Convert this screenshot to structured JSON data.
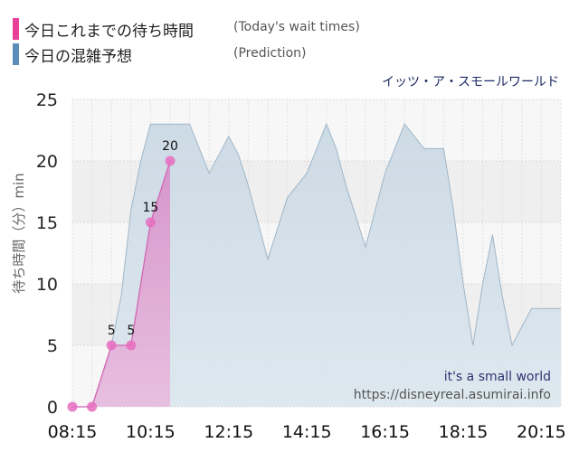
{
  "legend": {
    "today_label": "今日これまでの待ち時間",
    "today_en": "(Today's wait times)",
    "today_color": "#e8409a",
    "prediction_label": "今日の混雑予想",
    "prediction_en": "(Prediction)",
    "prediction_color": "#5a8db8"
  },
  "attraction_name_jp": "イッツ・ア・スモールワールド",
  "watermark": {
    "name": "it's a small world",
    "url": "https://disneyreal.asumirai.info"
  },
  "chart_data": {
    "type": "area",
    "ylabel": "待ち時間（分）min",
    "ylim": [
      0,
      25
    ],
    "yticks": [
      0,
      5,
      10,
      15,
      20,
      25
    ],
    "xlim": [
      "08:15",
      "20:45"
    ],
    "xticks": [
      "08:15",
      "10:15",
      "12:15",
      "14:15",
      "16:15",
      "18:15",
      "20:15"
    ],
    "grid": true,
    "series": [
      {
        "name": "今日の混雑予想",
        "color": "#5a8db8",
        "points": [
          [
            "08:15",
            0
          ],
          [
            "08:30",
            0
          ],
          [
            "08:45",
            0
          ],
          [
            "09:00",
            2
          ],
          [
            "09:15",
            5
          ],
          [
            "09:30",
            9
          ],
          [
            "09:45",
            16
          ],
          [
            "10:00",
            20
          ],
          [
            "10:15",
            23
          ],
          [
            "10:30",
            23
          ],
          [
            "10:45",
            23
          ],
          [
            "11:00",
            23
          ],
          [
            "11:15",
            23
          ],
          [
            "11:30",
            21
          ],
          [
            "11:45",
            19
          ],
          [
            "12:00",
            20.5
          ],
          [
            "12:15",
            22
          ],
          [
            "12:30",
            20.5
          ],
          [
            "12:45",
            18
          ],
          [
            "13:00",
            15
          ],
          [
            "13:15",
            12
          ],
          [
            "13:30",
            14.5
          ],
          [
            "13:45",
            17
          ],
          [
            "14:00",
            18
          ],
          [
            "14:15",
            19
          ],
          [
            "14:30",
            21
          ],
          [
            "14:45",
            23
          ],
          [
            "15:00",
            21
          ],
          [
            "15:15",
            18
          ],
          [
            "15:30",
            15.5
          ],
          [
            "15:45",
            13
          ],
          [
            "16:00",
            16
          ],
          [
            "16:15",
            19
          ],
          [
            "16:30",
            21
          ],
          [
            "16:45",
            23
          ],
          [
            "17:00",
            22
          ],
          [
            "17:15",
            21
          ],
          [
            "17:30",
            21
          ],
          [
            "17:45",
            21
          ],
          [
            "18:00",
            16
          ],
          [
            "18:15",
            10
          ],
          [
            "18:30",
            5
          ],
          [
            "18:45",
            10
          ],
          [
            "19:00",
            14
          ],
          [
            "19:15",
            9
          ],
          [
            "19:30",
            5
          ],
          [
            "19:45",
            6.5
          ],
          [
            "20:00",
            8
          ],
          [
            "20:15",
            8
          ],
          [
            "20:30",
            8
          ],
          [
            "20:45",
            8
          ]
        ]
      },
      {
        "name": "今日これまでの待ち時間",
        "color": "#e8409a",
        "points": [
          [
            "08:15",
            0
          ],
          [
            "08:45",
            0
          ],
          [
            "09:15",
            5
          ],
          [
            "09:45",
            5
          ],
          [
            "10:15",
            15
          ],
          [
            "10:45",
            20
          ]
        ],
        "data_labels": [
          {
            "time": "09:15",
            "label": "5"
          },
          {
            "time": "09:45",
            "label": "5"
          },
          {
            "time": "10:15",
            "label": "15"
          },
          {
            "time": "10:45",
            "label": "20"
          }
        ]
      }
    ]
  }
}
